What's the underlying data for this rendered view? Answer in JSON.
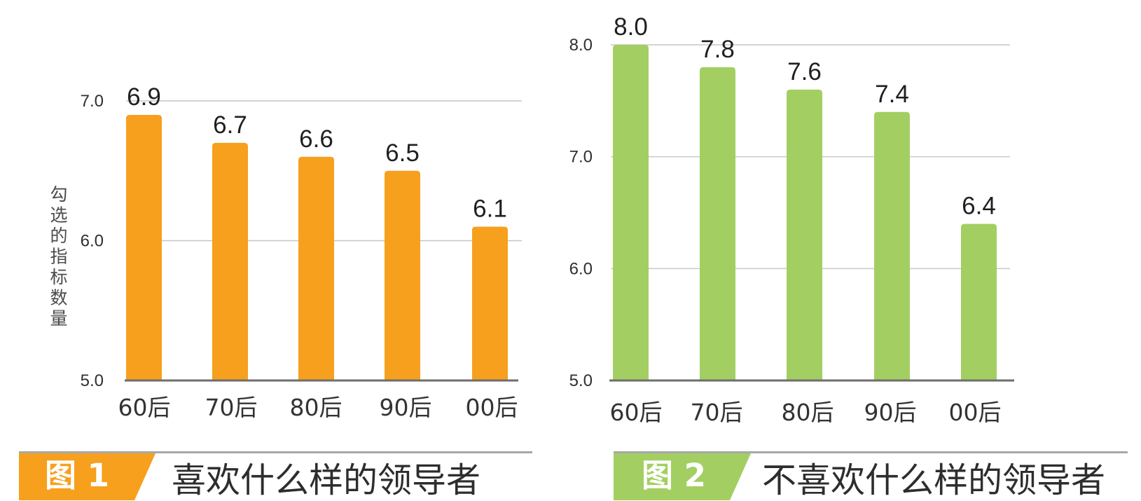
{
  "chart_data": [
    {
      "type": "bar",
      "categories": [
        "60后",
        "70后",
        "80后",
        "90后",
        "00后"
      ],
      "values": [
        6.9,
        6.7,
        6.6,
        6.5,
        6.1
      ],
      "value_labels": [
        "6.9",
        "6.7",
        "6.6",
        "6.5",
        "6.1"
      ],
      "title": "喜欢什么样的领导者",
      "figure_tag": "图 1",
      "xlabel": "",
      "ylabel": "勾选的指标数量",
      "ylim": [
        5.0,
        7.0
      ],
      "yticks": [
        5.0,
        6.0,
        7.0
      ],
      "ytick_labels": [
        "5.0",
        "6.0",
        "7.0"
      ],
      "grid": true,
      "color": "#f6a01e"
    },
    {
      "type": "bar",
      "categories": [
        "60后",
        "70后",
        "80后",
        "90后",
        "00后"
      ],
      "values": [
        8.0,
        7.8,
        7.6,
        7.4,
        6.4
      ],
      "value_labels": [
        "8.0",
        "7.8",
        "7.6",
        "7.4",
        "6.4"
      ],
      "title": "不喜欢什么样的领导者",
      "figure_tag": "图 2",
      "xlabel": "",
      "ylabel": "",
      "ylim": [
        5.0,
        8.0
      ],
      "yticks": [
        5.0,
        6.0,
        7.0,
        8.0
      ],
      "ytick_labels": [
        "5.0",
        "6.0",
        "7.0",
        "8.0"
      ],
      "grid": true,
      "color": "#a3cf62"
    }
  ],
  "colors": {
    "gridline": "#c6c6c6",
    "baseline": "#6e6e6e",
    "caption_rule": "#a8a8a8"
  }
}
